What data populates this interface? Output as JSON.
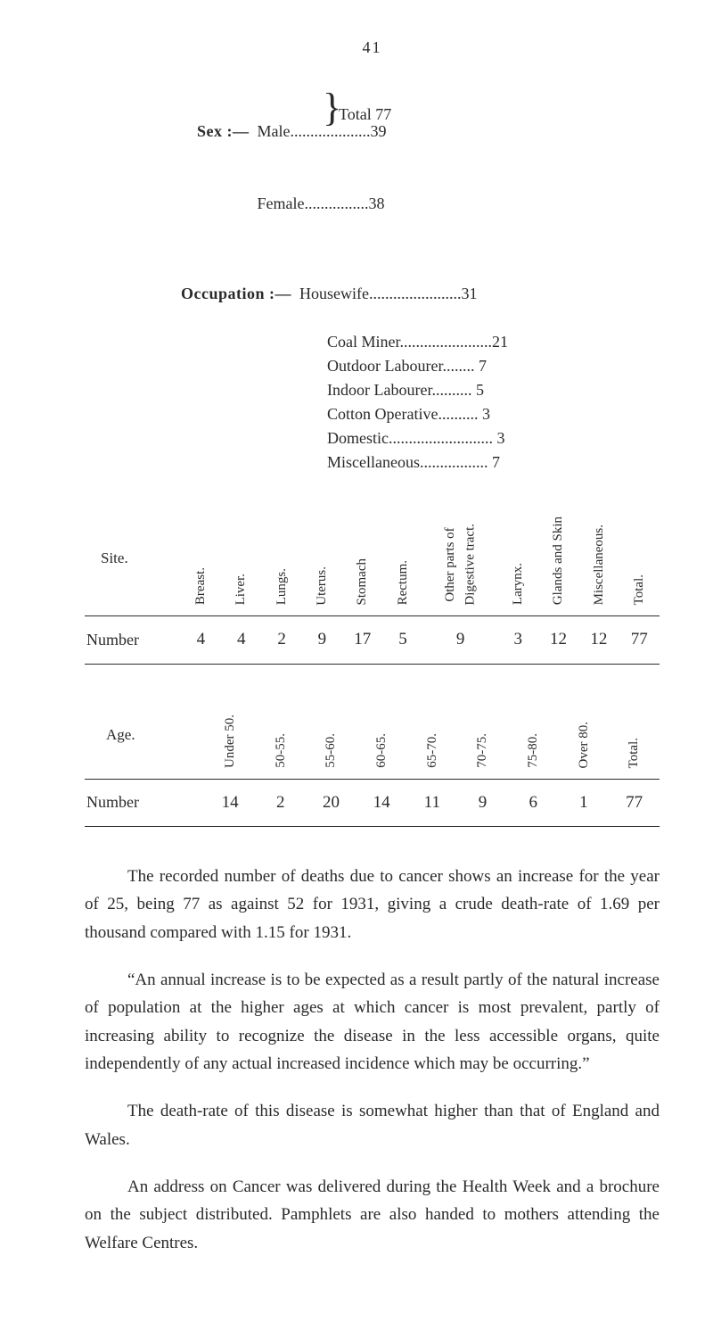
{
  "page_number": "41",
  "sex": {
    "label": "Sex :—",
    "male_label": "Male",
    "male_dots": "....................",
    "male_val": "39",
    "female_label": "Female",
    "female_dots": "................",
    "female_val": "38",
    "total_label": "Total 77"
  },
  "occupation": {
    "label": "Occupation :—",
    "items": [
      {
        "name": "Housewife",
        "dots": ".......................",
        "val": "31"
      },
      {
        "name": "Coal Miner",
        "dots": ".......................",
        "val": "21"
      },
      {
        "name": "Outdoor Labourer",
        "dots": "........",
        "val": " 7"
      },
      {
        "name": "Indoor Labourer",
        "dots": "..........",
        "val": " 5"
      },
      {
        "name": "Cotton Operative",
        "dots": "..........",
        "val": " 3"
      },
      {
        "name": "Domestic",
        "dots": "..........................",
        "val": " 3"
      },
      {
        "name": "Miscellaneous",
        "dots": ".................",
        "val": " 7"
      }
    ]
  },
  "site_table": {
    "row_header": "Site.",
    "row_label": "Number",
    "cols": [
      "Breast.",
      "Liver.",
      "Lungs.",
      "Uterus.",
      "Stomach",
      "Rectum.",
      "Other parts of\nDigestive tract.",
      "Larynx.",
      "Glands and Skin",
      "Miscellaneous.",
      "Total."
    ],
    "vals": [
      "4",
      "4",
      "2",
      "9",
      "17",
      "5",
      "9",
      "3",
      "12",
      "12",
      "77"
    ]
  },
  "age_table": {
    "row_header": "Age.",
    "row_label": "Number",
    "cols": [
      "Under 50.",
      "50-55.",
      "55-60.",
      "60-65.",
      "65-70.",
      "70-75.",
      "75-80.",
      "Over 80.",
      "Total."
    ],
    "vals": [
      "14",
      "2",
      "20",
      "14",
      "11",
      "9",
      "6",
      "1",
      "77"
    ]
  },
  "paragraphs": [
    "The recorded number of deaths due to cancer shows an increase for the year of 25, being 77 as against 52 for 1931, giving a crude death-rate of 1.69 per thousand compared with 1.15 for 1931.",
    "“An annual increase is to be expected as a result partly of the natural increase of population at the higher ages at which cancer is most prevalent, partly of increasing ability to recognize the disease in the less accessible organs, quite independently of any actual increased incidence which may be occurring.”",
    "The death-rate of this disease is somewhat higher than that of England and Wales.",
    "An address on Cancer was delivered during the Health Week and a brochure on the subject distributed. Pamphlets are also handed to mothers attending the Welfare Centres."
  ]
}
